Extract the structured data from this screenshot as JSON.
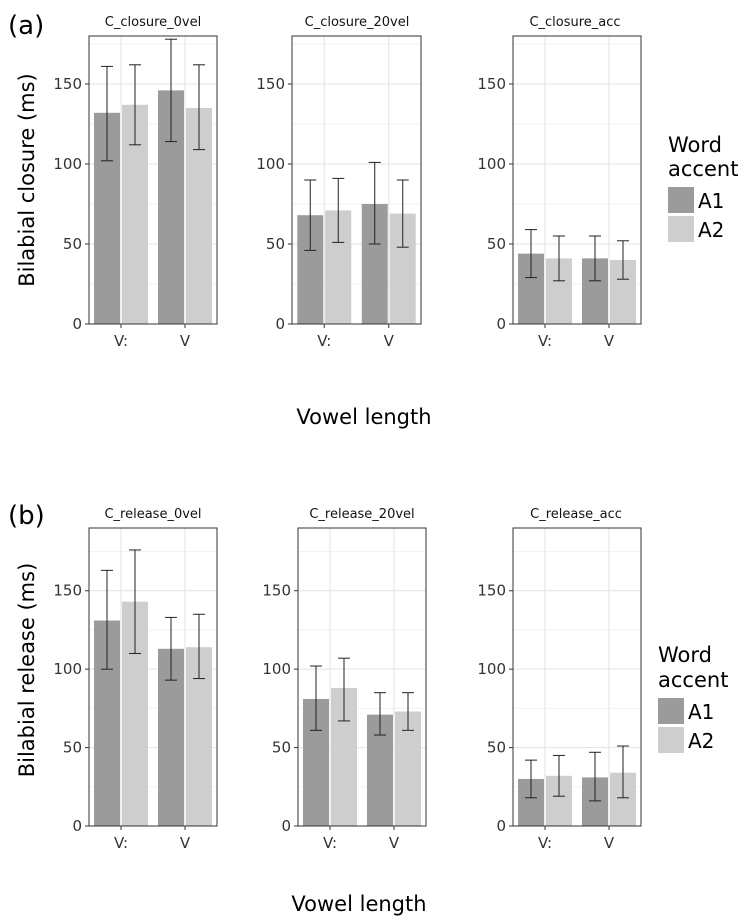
{
  "colors": {
    "A1": "#9b9b9b",
    "A2": "#cecece"
  },
  "legend_title_lines": [
    "Word",
    "accent"
  ],
  "legend_entries": [
    "A1",
    "A2"
  ],
  "chart_data": [
    {
      "type": "bar",
      "panel_label": "(a)",
      "ylabel": "Bilabial closure (ms)",
      "xlabel": "Vowel length",
      "categories": [
        "V:",
        "V"
      ],
      "ylim": [
        0,
        180
      ],
      "yticks": [
        0,
        50,
        100,
        150
      ],
      "grid": true,
      "legend": {
        "title": "Word accent",
        "entries": [
          "A1",
          "A2"
        ],
        "placement": "right"
      },
      "facets": [
        {
          "title": "C_closure_0vel",
          "series": [
            {
              "name": "A1",
              "values": [
                132,
                146
              ],
              "err_low": [
                102,
                114
              ],
              "err_high": [
                161,
                178
              ]
            },
            {
              "name": "A2",
              "values": [
                137,
                135
              ],
              "err_low": [
                112,
                109
              ],
              "err_high": [
                162,
                162
              ]
            }
          ]
        },
        {
          "title": "C_closure_20vel",
          "series": [
            {
              "name": "A1",
              "values": [
                68,
                75
              ],
              "err_low": [
                46,
                50
              ],
              "err_high": [
                90,
                101
              ]
            },
            {
              "name": "A2",
              "values": [
                71,
                69
              ],
              "err_low": [
                51,
                48
              ],
              "err_high": [
                91,
                90
              ]
            }
          ]
        },
        {
          "title": "C_closure_acc",
          "series": [
            {
              "name": "A1",
              "values": [
                44,
                41
              ],
              "err_low": [
                29,
                27
              ],
              "err_high": [
                59,
                55
              ]
            },
            {
              "name": "A2",
              "values": [
                41,
                40
              ],
              "err_low": [
                27,
                28
              ],
              "err_high": [
                55,
                52
              ]
            }
          ]
        }
      ]
    },
    {
      "type": "bar",
      "panel_label": "(b)",
      "ylabel": "Bilabial release (ms)",
      "xlabel": "Vowel length",
      "categories": [
        "V:",
        "V"
      ],
      "ylim": [
        0,
        190
      ],
      "yticks": [
        0,
        50,
        100,
        150
      ],
      "grid": true,
      "legend": {
        "title": "Word accent",
        "entries": [
          "A1",
          "A2"
        ],
        "placement": "right"
      },
      "facets": [
        {
          "title": "C_release_0vel",
          "series": [
            {
              "name": "A1",
              "values": [
                131,
                113
              ],
              "err_low": [
                100,
                93
              ],
              "err_high": [
                163,
                133
              ]
            },
            {
              "name": "A2",
              "values": [
                143,
                114
              ],
              "err_low": [
                110,
                94
              ],
              "err_high": [
                176,
                135
              ]
            }
          ]
        },
        {
          "title": "C_release_20vel",
          "series": [
            {
              "name": "A1",
              "values": [
                81,
                71
              ],
              "err_low": [
                61,
                58
              ],
              "err_high": [
                102,
                85
              ]
            },
            {
              "name": "A2",
              "values": [
                88,
                73
              ],
              "err_low": [
                67,
                61
              ],
              "err_high": [
                107,
                85
              ]
            }
          ]
        },
        {
          "title": "C_release_acc",
          "series": [
            {
              "name": "A1",
              "values": [
                30,
                31
              ],
              "err_low": [
                18,
                16
              ],
              "err_high": [
                42,
                47
              ]
            },
            {
              "name": "A2",
              "values": [
                32,
                34
              ],
              "err_low": [
                19,
                18
              ],
              "err_high": [
                45,
                51
              ]
            }
          ]
        }
      ]
    }
  ]
}
